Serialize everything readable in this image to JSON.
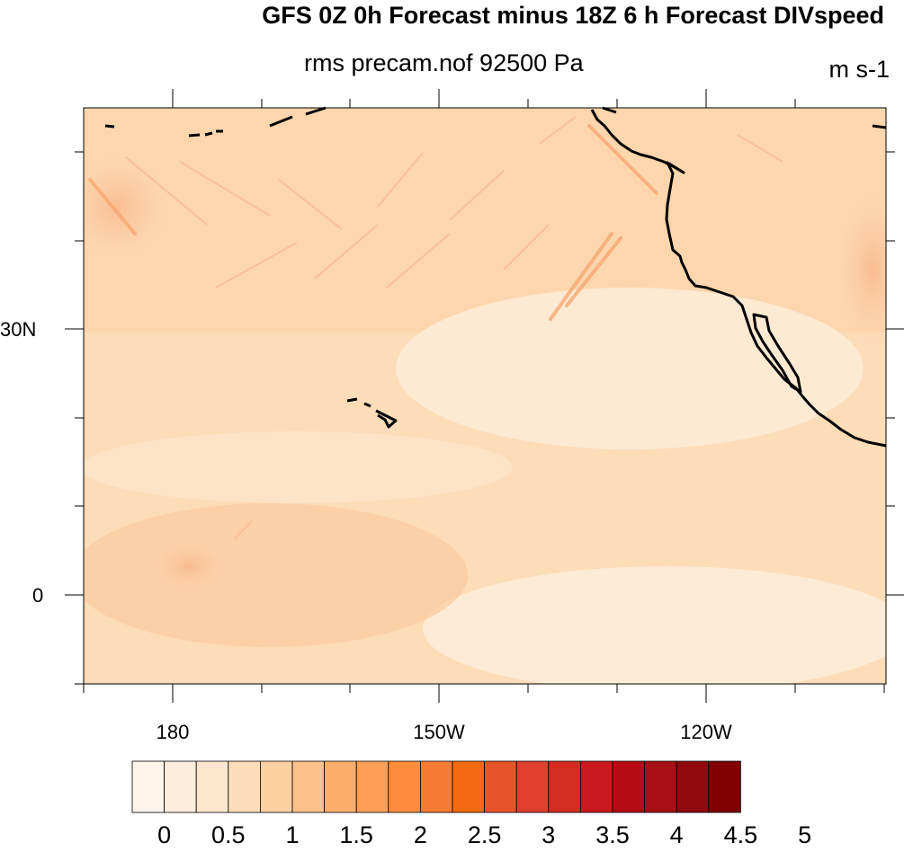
{
  "title": "GFS 0Z 0h Forecast minus 18Z 6 h Forecast DIVspeed",
  "subtitle": "rms precam.nof 92500 Pa",
  "units": "m s-1",
  "map": {
    "lat_labels": [
      "30N",
      "0"
    ],
    "lon_labels": [
      "180",
      "150W",
      "120W"
    ],
    "background_color": "#fce2c1",
    "coastline_color": "#000000"
  },
  "colorbar": {
    "tick_labels": [
      "0",
      "0.5",
      "1",
      "1.5",
      "2",
      "2.5",
      "3",
      "3.5",
      "4",
      "4.5",
      "5"
    ],
    "colors": [
      "#fff5eb",
      "#feeddc",
      "#fee6ce",
      "#fddcb8",
      "#fdd0a2",
      "#fdc18a",
      "#fdae6b",
      "#fd9f57",
      "#fd8d3c",
      "#f67c33",
      "#f16913",
      "#e8542a",
      "#e0402d",
      "#d42c21",
      "#cb181d",
      "#b70c13",
      "#a50f15",
      "#900a10",
      "#7f0000"
    ]
  }
}
